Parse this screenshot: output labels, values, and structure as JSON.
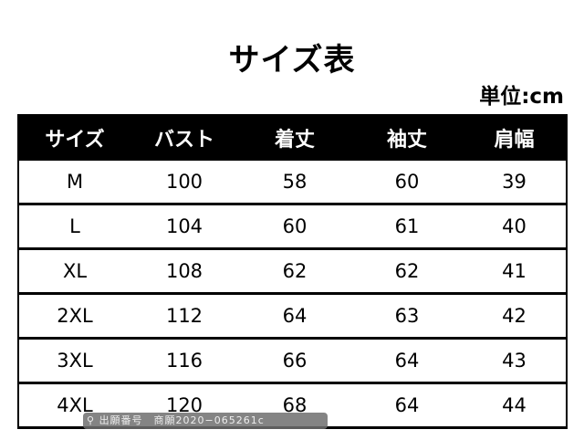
{
  "title": "サイズ表",
  "unit": "単位:cm",
  "headers": [
    "サイズ",
    "バスト",
    "着丈",
    "袖丈",
    "肩幅"
  ],
  "rows": [
    [
      "M",
      "100",
      "58",
      "60",
      "39"
    ],
    [
      "L",
      "104",
      "60",
      "61",
      "40"
    ],
    [
      "XL",
      "108",
      "62",
      "62",
      "41"
    ],
    [
      "2XL",
      "112",
      "64",
      "63",
      "42"
    ],
    [
      "3XL",
      "116",
      "66",
      "64",
      "43"
    ],
    [
      "4XL",
      "120",
      "68",
      "64",
      "44"
    ]
  ],
  "watermark": {
    "icon": "search-icon",
    "text": "出願番号　商願2020−065261c"
  }
}
